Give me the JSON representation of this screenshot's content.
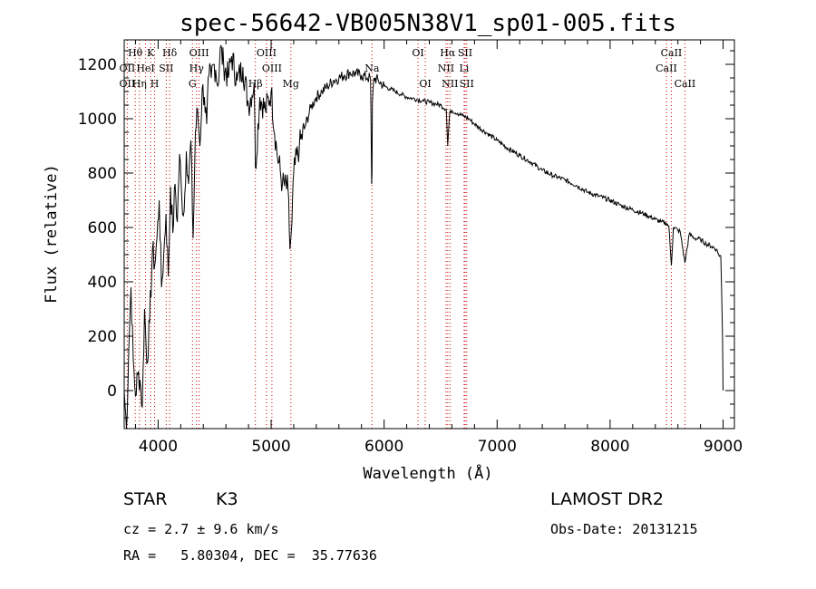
{
  "chart_data": {
    "type": "line",
    "title": "spec-56642-VB005N38V1_sp01-005.fits",
    "xlabel": "Wavelength (Å)",
    "ylabel": "Flux (relative)",
    "xlim": [
      3700,
      9100
    ],
    "ylim": [
      -140,
      1290
    ],
    "xticks": [
      4000,
      5000,
      6000,
      7000,
      8000,
      9000
    ],
    "yticks": [
      0,
      200,
      400,
      600,
      800,
      1000,
      1200
    ],
    "grid": false,
    "line_color": "#000000",
    "marker_color": "#cc0000",
    "series": [
      {
        "x": [
          3700,
          3720,
          3740,
          3760,
          3780,
          3800,
          3820,
          3840,
          3860,
          3880,
          3900,
          3925,
          3950,
          3970,
          3990,
          4010,
          4030,
          4050,
          4070,
          4090,
          4110,
          4130,
          4150,
          4170,
          4190,
          4210,
          4230,
          4250,
          4270,
          4290,
          4310,
          4330,
          4350,
          4370,
          4390,
          4410,
          4430,
          4450,
          4470,
          4490,
          4510,
          4530,
          4550,
          4580,
          4620,
          4650,
          4700,
          4750,
          4800,
          4850,
          4861,
          4900,
          4950,
          5000,
          5050,
          5100,
          5150,
          5167,
          5175,
          5184,
          5200,
          5250,
          5300,
          5350,
          5400,
          5450,
          5500,
          5550,
          5600,
          5650,
          5700,
          5750,
          5800,
          5850,
          5880,
          5890,
          5893,
          5896,
          5910,
          5950,
          6000,
          6050,
          6100,
          6150,
          6200,
          6250,
          6300,
          6350,
          6400,
          6450,
          6500,
          6550,
          6563,
          6580,
          6600,
          6650,
          6700,
          6750,
          6800,
          6900,
          7000,
          7100,
          7200,
          7300,
          7400,
          7500,
          7600,
          7700,
          7800,
          7900,
          8000,
          8100,
          8200,
          8300,
          8400,
          8450,
          8498,
          8520,
          8542,
          8560,
          8600,
          8620,
          8662,
          8700,
          8750,
          8800,
          8850,
          8900,
          8940,
          8960,
          8980,
          8995,
          9000
        ],
        "y": [
          0,
          -140,
          150,
          380,
          110,
          -20,
          60,
          40,
          -60,
          300,
          100,
          250,
          520,
          460,
          560,
          700,
          380,
          500,
          650,
          420,
          750,
          580,
          760,
          620,
          870,
          700,
          660,
          880,
          760,
          920,
          560,
          950,
          1030,
          900,
          1110,
          1080,
          980,
          1160,
          1150,
          1200,
          1180,
          1120,
          1260,
          1200,
          1150,
          1230,
          1140,
          1190,
          1050,
          1130,
          820,
          1080,
          1030,
          1100,
          880,
          760,
          740,
          520,
          560,
          620,
          800,
          900,
          970,
          1040,
          1080,
          1100,
          1120,
          1140,
          1150,
          1160,
          1170,
          1165,
          1160,
          1150,
          1150,
          760,
          800,
          1060,
          1150,
          1140,
          1120,
          1110,
          1100,
          1090,
          1080,
          1075,
          1070,
          1065,
          1060,
          1055,
          1050,
          1035,
          900,
          1020,
          1030,
          1020,
          1010,
          1000,
          980,
          950,
          920,
          890,
          865,
          840,
          810,
          790,
          775,
          755,
          730,
          715,
          700,
          680,
          665,
          650,
          630,
          620,
          615,
          605,
          460,
          600,
          590,
          585,
          470,
          575,
          560,
          555,
          540,
          530,
          520,
          500,
          495,
          200,
          0
        ]
      }
    ],
    "line_labels": [
      {
        "text": "Hθ",
        "wl": 3798,
        "row": 0
      },
      {
        "text": "K",
        "wl": 3934,
        "row": 0
      },
      {
        "text": "Hδ",
        "wl": 4102,
        "row": 0
      },
      {
        "text": "OIII",
        "wl": 4363,
        "row": 0
      },
      {
        "text": "OIII",
        "wl": 4959,
        "row": 0
      },
      {
        "text": "OI",
        "wl": 6300,
        "row": 0
      },
      {
        "text": "Hα",
        "wl": 6563,
        "row": 0
      },
      {
        "text": "SII",
        "wl": 6717,
        "row": 0
      },
      {
        "text": "CaII",
        "wl": 8542,
        "row": 0
      },
      {
        "text": "OII",
        "wl": 3727,
        "row": 1
      },
      {
        "text": "HeI",
        "wl": 3889,
        "row": 1
      },
      {
        "text": "SII",
        "wl": 4072,
        "row": 1
      },
      {
        "text": "Hγ",
        "wl": 4340,
        "row": 1
      },
      {
        "text": "OIII",
        "wl": 5007,
        "row": 1
      },
      {
        "text": "Na",
        "wl": 5893,
        "row": 1
      },
      {
        "text": "NII",
        "wl": 6548,
        "row": 1
      },
      {
        "text": "Li",
        "wl": 6708,
        "row": 1
      },
      {
        "text": "CaII",
        "wl": 8498,
        "row": 1
      },
      {
        "text": "OII",
        "wl": 3727,
        "row": 2
      },
      {
        "text": "Hη",
        "wl": 3835,
        "row": 2
      },
      {
        "text": "H",
        "wl": 3969,
        "row": 2
      },
      {
        "text": "G",
        "wl": 4304,
        "row": 2
      },
      {
        "text": "Hβ",
        "wl": 4861,
        "row": 2
      },
      {
        "text": "Mg",
        "wl": 5175,
        "row": 2
      },
      {
        "text": "OI",
        "wl": 6364,
        "row": 2
      },
      {
        "text": "NII",
        "wl": 6583,
        "row": 2
      },
      {
        "text": "SII",
        "wl": 6731,
        "row": 2
      },
      {
        "text": "CaII",
        "wl": 8662,
        "row": 2
      }
    ],
    "marker_lines_wl": [
      3727,
      3798,
      3835,
      3889,
      3934,
      3969,
      4072,
      4102,
      4304,
      4340,
      4363,
      4861,
      4959,
      5007,
      5175,
      5893,
      6300,
      6364,
      6548,
      6563,
      6583,
      6708,
      6717,
      6731,
      8498,
      8542,
      8662
    ]
  },
  "footer": {
    "object_type": "STAR",
    "subclass": "K3",
    "release": "LAMOST DR2",
    "cz": "cz = 2.7 ± 9.6 km/s",
    "obs_date": "Obs-Date: 20131215",
    "radec": "RA =   5.80304, DEC =  35.77636"
  }
}
